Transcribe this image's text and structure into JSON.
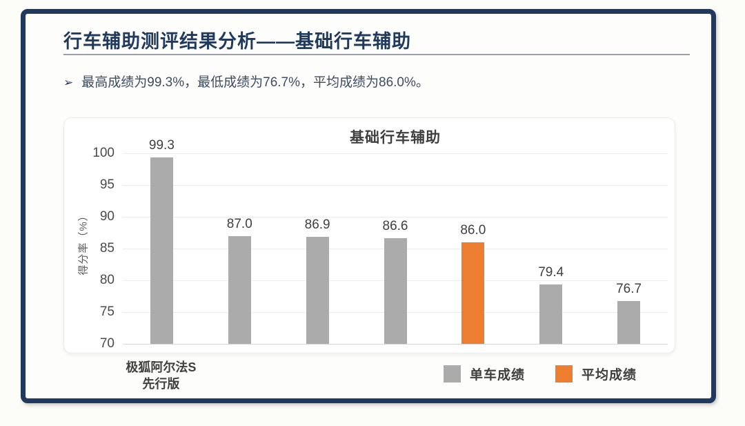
{
  "slide": {
    "title": "行车辅助测评结果分析——基础行车辅助",
    "bullet_marker": "➢",
    "bullet_text": "最高成绩为99.3%，最低成绩为76.7%，平均成绩为86.0%。",
    "colors": {
      "frame_navy": "#1f3a5e",
      "title_navy": "#1f3a5e",
      "body_text": "#3d4c63"
    }
  },
  "chart_data": {
    "type": "bar",
    "title": "基础行车辅助",
    "xlabel": "",
    "ylabel": "得分率（%）",
    "ylim": [
      70,
      100
    ],
    "yticks": [
      100,
      95,
      90,
      85,
      80,
      75,
      70
    ],
    "grid": true,
    "value_label_decimals": 1,
    "categories": [
      "极狐阿尔法S\n先行版",
      "",
      "",
      "",
      "",
      "",
      ""
    ],
    "bars": [
      {
        "value": 99.3,
        "series": "单车成绩",
        "category_lines": [
          "极狐阿尔法S",
          "先行版"
        ]
      },
      {
        "value": 87.0,
        "series": "单车成绩",
        "category_lines": []
      },
      {
        "value": 86.9,
        "series": "单车成绩",
        "category_lines": []
      },
      {
        "value": 86.6,
        "series": "单车成绩",
        "category_lines": []
      },
      {
        "value": 86.0,
        "series": "平均成绩",
        "category_lines": []
      },
      {
        "value": 79.4,
        "series": "单车成绩",
        "category_lines": []
      },
      {
        "value": 76.7,
        "series": "单车成绩",
        "category_lines": []
      }
    ],
    "series_colors": {
      "单车成绩": "#ababab",
      "平均成绩": "#ed7d31"
    },
    "legend": [
      {
        "label": "单车成绩",
        "color": "#ababab"
      },
      {
        "label": "平均成绩",
        "color": "#ed7d31"
      }
    ],
    "legend_position": "bottom-right"
  }
}
